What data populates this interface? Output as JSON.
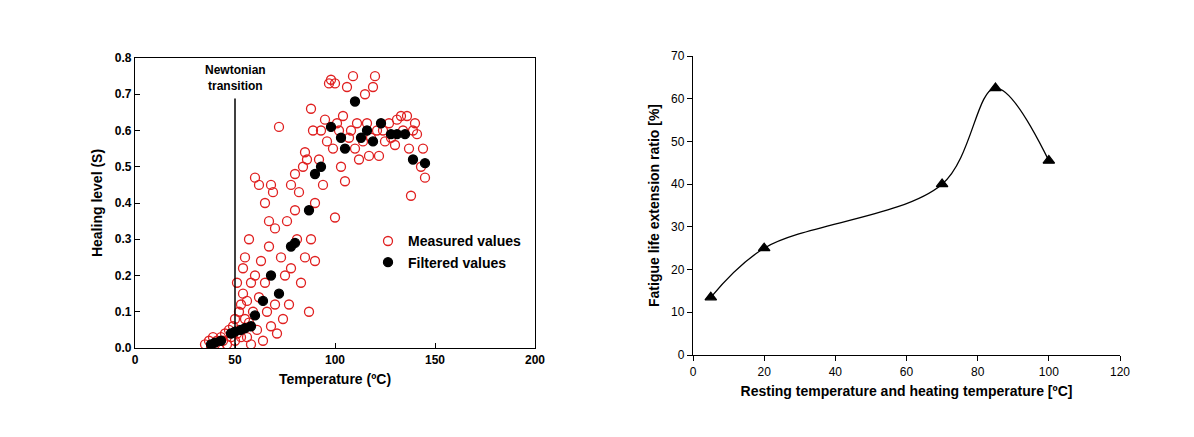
{
  "chart_data": [
    {
      "type": "scatter",
      "x_label": "Temperature (ºC)",
      "y_label": "Healing level (S)",
      "xlim": [
        0,
        200
      ],
      "xticks": [
        0,
        50,
        100,
        150,
        200
      ],
      "ylim": [
        0,
        0.8
      ],
      "yticks": [
        {
          "value": 0,
          "label": "0.0"
        },
        0.1,
        0.2,
        0.3,
        0.4,
        0.5,
        0.6,
        0.7,
        0.8
      ],
      "grid": false,
      "legend": "bottom right",
      "annotations": [
        {
          "text": "Newtonian transition",
          "x": 50
        }
      ],
      "series": [
        {
          "name": "Measured values",
          "color": "#e02020",
          "marker": "circle-open",
          "x": [
            35,
            37,
            38,
            39,
            40,
            41,
            42,
            43,
            44,
            45,
            46,
            47,
            48,
            49,
            50,
            50,
            51,
            51,
            52,
            52,
            53,
            53,
            54,
            54,
            55,
            55,
            56,
            56,
            57,
            57,
            58,
            58,
            59,
            60,
            60,
            61,
            62,
            62,
            63,
            64,
            65,
            65,
            66,
            67,
            67,
            68,
            68,
            69,
            70,
            70,
            71,
            72,
            73,
            74,
            75,
            76,
            77,
            78,
            78,
            80,
            80,
            81,
            82,
            83,
            84,
            85,
            85,
            86,
            87,
            88,
            88,
            89,
            90,
            90,
            92,
            93,
            94,
            95,
            96,
            97,
            98,
            99,
            100,
            100,
            101,
            102,
            103,
            104,
            105,
            106,
            107,
            108,
            109,
            110,
            111,
            112,
            114,
            115,
            116,
            117,
            118,
            119,
            120,
            121,
            122,
            124,
            125,
            127,
            128,
            130,
            131,
            133,
            134,
            136,
            137,
            138,
            139,
            140,
            141,
            143,
            144,
            145
          ],
          "values": [
            0.01,
            0.02,
            0.0,
            0.03,
            0.01,
            0.02,
            0.0,
            0.03,
            0.02,
            0.04,
            0.01,
            0.05,
            0.03,
            0.06,
            0.02,
            0.08,
            0.04,
            0.18,
            0.1,
            0.05,
            0.12,
            0.03,
            0.15,
            0.22,
            0.08,
            0.25,
            0.13,
            0.03,
            0.3,
            0.07,
            0.18,
            0.01,
            0.1,
            0.47,
            0.2,
            0.05,
            0.45,
            0.14,
            0.24,
            0.02,
            0.18,
            0.4,
            0.1,
            0.35,
            0.28,
            0.45,
            0.06,
            0.43,
            0.33,
            0.12,
            0.04,
            0.61,
            0.25,
            0.08,
            0.2,
            0.35,
            0.12,
            0.45,
            0.22,
            0.38,
            0.48,
            0.3,
            0.43,
            0.18,
            0.5,
            0.54,
            0.25,
            0.52,
            0.1,
            0.66,
            0.3,
            0.6,
            0.4,
            0.24,
            0.52,
            0.6,
            0.45,
            0.63,
            0.57,
            0.73,
            0.74,
            0.55,
            0.73,
            0.36,
            0.62,
            0.6,
            0.5,
            0.64,
            0.46,
            0.72,
            0.58,
            0.6,
            0.75,
            0.55,
            0.62,
            0.52,
            0.57,
            0.7,
            0.62,
            0.53,
            0.58,
            0.72,
            0.75,
            0.6,
            0.53,
            0.6,
            0.57,
            0.62,
            0.58,
            0.56,
            0.63,
            0.64,
            0.6,
            0.64,
            0.55,
            0.42,
            0.6,
            0.62,
            0.59,
            0.5,
            0.55,
            0.47
          ]
        },
        {
          "name": "Filtered values",
          "color": "#000000",
          "marker": "circle",
          "x": [
            38,
            40,
            43,
            48,
            50,
            53,
            55,
            58,
            60,
            64,
            68,
            72,
            78,
            80,
            87,
            90,
            93,
            98,
            103,
            105,
            110,
            113,
            116,
            119,
            123,
            128,
            131,
            135,
            139,
            145
          ],
          "values": [
            0.01,
            0.015,
            0.02,
            0.04,
            0.045,
            0.05,
            0.055,
            0.06,
            0.09,
            0.13,
            0.2,
            0.15,
            0.28,
            0.29,
            0.38,
            0.48,
            0.5,
            0.61,
            0.58,
            0.55,
            0.68,
            0.58,
            0.6,
            0.57,
            0.62,
            0.59,
            0.59,
            0.59,
            0.52,
            0.51
          ]
        }
      ]
    },
    {
      "type": "line",
      "x_label": "Resting temperature and heating temperature [ºC]",
      "y_label": "Fatigue life extension ratio [%]",
      "xlim": [
        0,
        120
      ],
      "xticks": [
        0,
        20,
        40,
        60,
        80,
        100,
        120
      ],
      "ylim": [
        0,
        70
      ],
      "yticks": [
        0,
        10,
        20,
        30,
        40,
        50,
        60,
        70
      ],
      "grid": false,
      "color": "#000000",
      "marker": "triangle-up",
      "line_style": "smooth",
      "x": [
        5,
        20,
        70,
        85,
        100
      ],
      "values": [
        13.5,
        25,
        40,
        62.5,
        45.5
      ]
    }
  ]
}
